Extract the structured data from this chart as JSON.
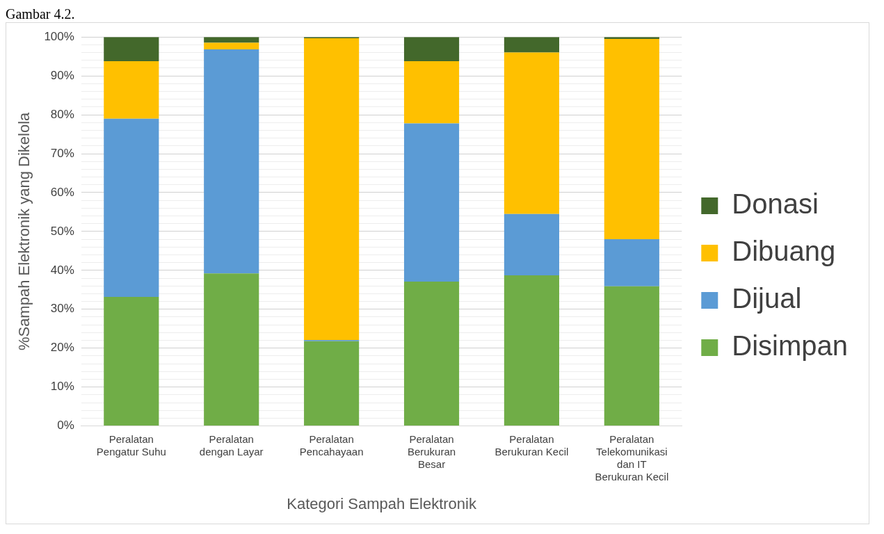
{
  "chart_data": {
    "type": "bar",
    "stacked": true,
    "xlabel": "Kategori Sampah Elektronik",
    "ylabel": "%Sampah Elektronik yang Dikelola",
    "annotations": [
      "Gambar 4.2."
    ],
    "categories": [
      "Peralatan Pengatur Suhu",
      "Peralatan dengan Layar",
      "Peralatan Pencahayaan",
      "Peralatan Berukuran Besar",
      "Peralatan Berukuran Kecil",
      "Peralatan Telekomunikasi dan IT Berukuran Kecil"
    ],
    "series": [
      {
        "name": "Disimpan",
        "color": "#70ad47",
        "values": [
          33.2,
          39.2,
          21.8,
          37.1,
          38.7,
          35.9
        ]
      },
      {
        "name": "Dijual",
        "color": "#5b9bd5",
        "values": [
          45.8,
          57.6,
          0.3,
          40.7,
          15.8,
          12.1
        ]
      },
      {
        "name": "Dibuang",
        "color": "#ffc000",
        "values": [
          14.8,
          1.7,
          77.6,
          16.0,
          41.5,
          51.5
        ]
      },
      {
        "name": "Donasi",
        "color": "#43682b",
        "values": [
          6.2,
          1.5,
          0.3,
          6.2,
          4.0,
          0.5
        ]
      }
    ],
    "ylim": [
      0,
      100
    ],
    "yticks": [
      {
        "value": 0,
        "label": "0%"
      },
      {
        "value": 2,
        "label": null
      },
      {
        "value": 4,
        "label": null
      },
      {
        "value": 6,
        "label": null
      },
      {
        "value": 8,
        "label": null
      },
      {
        "value": 10,
        "label": "10%"
      },
      {
        "value": 12,
        "label": null
      },
      {
        "value": 14,
        "label": null
      },
      {
        "value": 16,
        "label": null
      },
      {
        "value": 18,
        "label": null
      },
      {
        "value": 20,
        "label": "20%"
      },
      {
        "value": 22,
        "label": null
      },
      {
        "value": 24,
        "label": null
      },
      {
        "value": 26,
        "label": null
      },
      {
        "value": 28,
        "label": null
      },
      {
        "value": 30,
        "label": "30%"
      },
      {
        "value": 32,
        "label": null
      },
      {
        "value": 34,
        "label": null
      },
      {
        "value": 36,
        "label": null
      },
      {
        "value": 38,
        "label": null
      },
      {
        "value": 40,
        "label": "40%"
      },
      {
        "value": 42,
        "label": null
      },
      {
        "value": 44,
        "label": null
      },
      {
        "value": 46,
        "label": null
      },
      {
        "value": 48,
        "label": null
      },
      {
        "value": 50,
        "label": "50%"
      },
      {
        "value": 52,
        "label": null
      },
      {
        "value": 54,
        "label": null
      },
      {
        "value": 56,
        "label": null
      },
      {
        "value": 58,
        "label": null
      },
      {
        "value": 60,
        "label": "60%"
      },
      {
        "value": 62,
        "label": null
      },
      {
        "value": 64,
        "label": null
      },
      {
        "value": 66,
        "label": null
      },
      {
        "value": 68,
        "label": null
      },
      {
        "value": 70,
        "label": "70%"
      },
      {
        "value": 72,
        "label": null
      },
      {
        "value": 74,
        "label": null
      },
      {
        "value": 76,
        "label": null
      },
      {
        "value": 78,
        "label": null
      },
      {
        "value": 80,
        "label": "80%"
      },
      {
        "value": 82,
        "label": null
      },
      {
        "value": 84,
        "label": null
      },
      {
        "value": 86,
        "label": null
      },
      {
        "value": 88,
        "label": null
      },
      {
        "value": 90,
        "label": "90%"
      },
      {
        "value": 92,
        "label": null
      },
      {
        "value": 94,
        "label": null
      },
      {
        "value": 96,
        "label": null
      },
      {
        "value": 98,
        "label": null
      },
      {
        "value": 100,
        "label": "100%"
      }
    ],
    "grid": true,
    "legend": "right"
  }
}
